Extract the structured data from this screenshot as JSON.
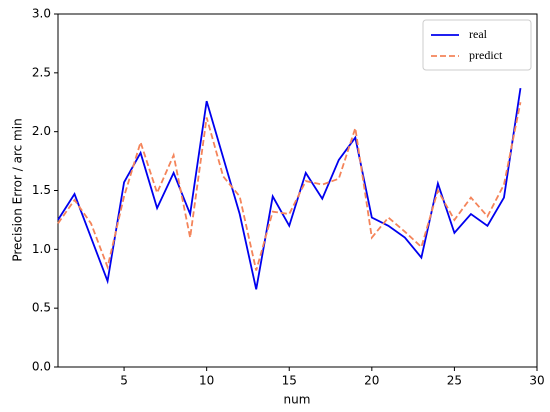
{
  "chart_data": {
    "type": "line",
    "x_label": "num",
    "y_label": "Precision Error / arc min",
    "x": [
      1,
      2,
      3,
      4,
      5,
      6,
      7,
      8,
      9,
      10,
      11,
      12,
      13,
      14,
      15,
      16,
      17,
      18,
      19,
      20,
      21,
      22,
      23,
      24,
      25,
      26,
      27,
      28,
      29
    ],
    "series": [
      {
        "name": "real",
        "color": "#0000ee",
        "dash": "solid",
        "values": [
          1.25,
          1.47,
          1.1,
          0.73,
          1.57,
          1.82,
          1.35,
          1.65,
          1.3,
          2.26,
          1.78,
          1.3,
          0.66,
          1.45,
          1.2,
          1.65,
          1.43,
          1.76,
          1.95,
          1.27,
          1.2,
          1.1,
          0.93,
          1.56,
          1.14,
          1.3,
          1.2,
          1.44,
          2.37
        ]
      },
      {
        "name": "predict",
        "color": "#f4845a",
        "dash": "dashed",
        "values": [
          1.22,
          1.42,
          1.22,
          0.85,
          1.45,
          1.91,
          1.48,
          1.8,
          1.1,
          2.12,
          1.62,
          1.45,
          0.82,
          1.32,
          1.3,
          1.58,
          1.55,
          1.6,
          2.03,
          1.1,
          1.27,
          1.15,
          1.02,
          1.5,
          1.25,
          1.44,
          1.28,
          1.55,
          2.25
        ]
      }
    ],
    "xlim": [
      1,
      30
    ],
    "xticks": [
      5,
      10,
      15,
      20,
      25,
      30
    ],
    "ylim": [
      0,
      3
    ],
    "yticks": [
      {
        "value": 0,
        "label": "0.0"
      },
      {
        "value": 0.5,
        "label": "0.5"
      },
      {
        "value": 1,
        "label": "1.0"
      },
      {
        "value": 1.5,
        "label": "1.5"
      },
      {
        "value": 2,
        "label": "2.0"
      },
      {
        "value": 2.5,
        "label": "2.5"
      },
      {
        "value": 3,
        "label": "3.0"
      }
    ],
    "legend": "upper right"
  }
}
